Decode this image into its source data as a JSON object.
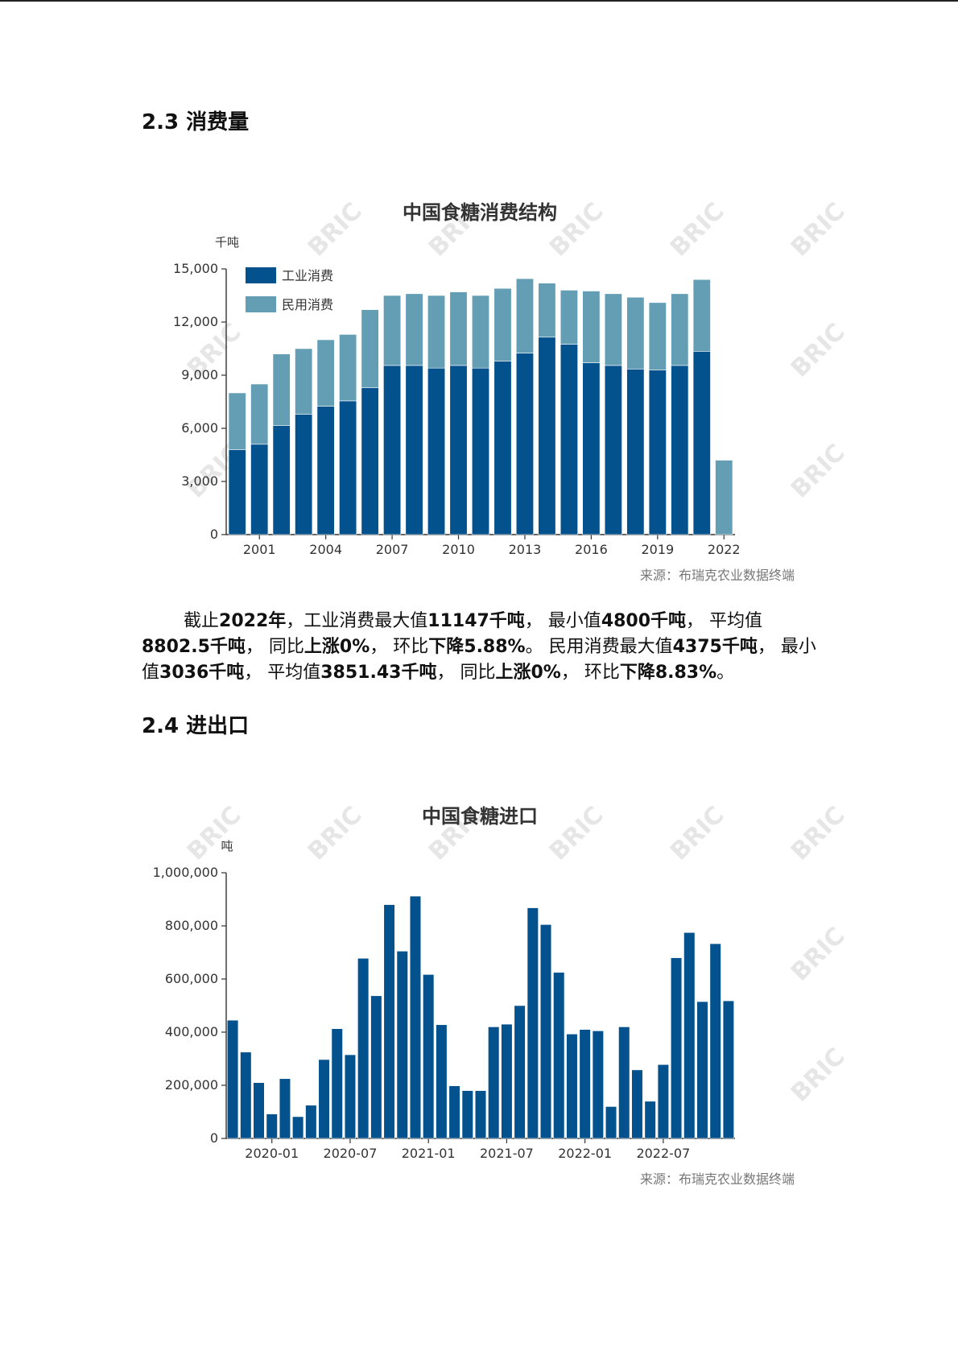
{
  "sections": {
    "consumption_heading": "2.3 消费量",
    "trade_heading": "2.4 进出口"
  },
  "summary": {
    "t01": "截止",
    "t02": "2022年",
    "t03": "，工业消费最大值",
    "t04": "11147千吨",
    "t05": "， 最小值",
    "t06": "4800千吨",
    "t07": "， 平均值",
    "t08": "8802.5千吨",
    "t09": "， 同比",
    "t10": "上涨0%",
    "t11": "， 环比",
    "t12": "下降5.88%",
    "t13": "。 民用消费最大值",
    "t14": "4375千吨",
    "t15": "， 最小值",
    "t16": "3036千吨",
    "t17": "， 平均值",
    "t18": "3851.43千吨",
    "t19": "， 同比",
    "t20": "上涨0%",
    "t21": "， 环比",
    "t22": "下降8.83%",
    "t23": "。"
  },
  "watermark_text": "BRIC",
  "colors": {
    "industrial": "#03528e",
    "civil": "#649eb4",
    "imports": "#03528e"
  },
  "chart_data": [
    {
      "type": "bar",
      "stacked": true,
      "title": "中国食糖消费结构",
      "ylabel": "千吨",
      "ylim": [
        0,
        15000
      ],
      "yticks": [
        "0",
        "3,000",
        "6,000",
        "9,000",
        "12,000",
        "15,000"
      ],
      "legend": [
        "工业消费",
        "民用消费"
      ],
      "legend_position": "top-left",
      "grid": false,
      "source": "来源：布瑞克农业数据终端",
      "categories": [
        "2000",
        "2001",
        "2002",
        "2003",
        "2004",
        "2005",
        "2006",
        "2007",
        "2008",
        "2009",
        "2010",
        "2011",
        "2012",
        "2013",
        "2014",
        "2015",
        "2016",
        "2017",
        "2018",
        "2019",
        "2020",
        "2021",
        "2022"
      ],
      "xtick_labels": [
        "2001",
        "2004",
        "2007",
        "2010",
        "2013",
        "2016",
        "2019",
        "2022"
      ],
      "series": [
        {
          "name": "工业消费",
          "values": [
            4800,
            5100,
            6150,
            6800,
            7250,
            7550,
            8300,
            9550,
            9550,
            9400,
            9550,
            9400,
            9800,
            10250,
            11147,
            10750,
            9700,
            9550,
            9350,
            9300,
            9550,
            10350,
            0
          ]
        },
        {
          "name": "民用消费",
          "values": [
            3200,
            3400,
            4050,
            3700,
            3750,
            3750,
            4400,
            3950,
            4050,
            4100,
            4150,
            4100,
            4100,
            4200,
            3050,
            3050,
            4050,
            4050,
            4050,
            3800,
            4050,
            4050,
            4200
          ]
        }
      ]
    },
    {
      "type": "bar",
      "title": "中国食糖进口",
      "ylabel": "吨",
      "ylim": [
        0,
        1000000
      ],
      "yticks": [
        "0",
        "200,000",
        "400,000",
        "600,000",
        "800,000",
        "1,000,000"
      ],
      "grid": false,
      "source": "来源：布瑞克农业数据终端",
      "categories": [
        "2019-10",
        "2019-11",
        "2019-12",
        "2020-01",
        "2020-02",
        "2020-03",
        "2020-04",
        "2020-05",
        "2020-06",
        "2020-07",
        "2020-08",
        "2020-09",
        "2020-10",
        "2020-11",
        "2020-12",
        "2021-01",
        "2021-02",
        "2021-03",
        "2021-04",
        "2021-05",
        "2021-06",
        "2021-07",
        "2021-08",
        "2021-09",
        "2021-10",
        "2021-11",
        "2021-12",
        "2022-01",
        "2022-02",
        "2022-03",
        "2022-04",
        "2022-05",
        "2022-06",
        "2022-07",
        "2022-08",
        "2022-09",
        "2022-10",
        "2022-11",
        "2022-12"
      ],
      "xtick_labels": [
        "2020-01",
        "2020-07",
        "2021-01",
        "2021-07",
        "2022-01",
        "2022-07"
      ],
      "series": [
        {
          "name": "",
          "values": [
            445000,
            325000,
            210000,
            92000,
            225000,
            82000,
            125000,
            297000,
            413000,
            315000,
            678000,
            537000,
            880000,
            705000,
            912000,
            617000,
            428000,
            198000,
            180000,
            180000,
            420000,
            430000,
            500000,
            868000,
            805000,
            625000,
            393000,
            410000,
            405000,
            120000,
            420000,
            258000,
            140000,
            278000,
            680000,
            775000,
            515000,
            733000,
            518000
          ]
        }
      ]
    }
  ]
}
